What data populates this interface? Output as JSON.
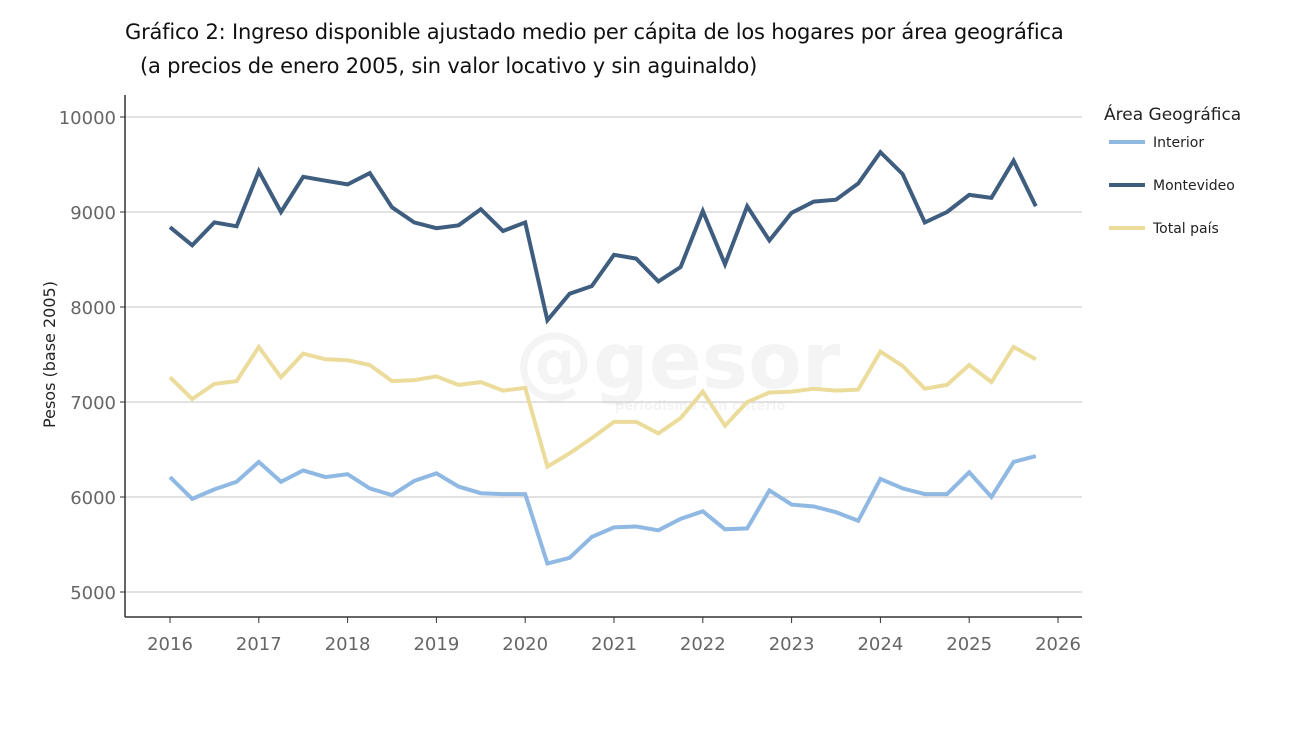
{
  "chart_data": {
    "type": "line",
    "title": "Gráfico 2: Ingreso disponible ajustado medio per cápita de los hogares por área geográfica",
    "subtitle": "(a precios de enero 2005, sin valor locativo y sin aguinaldo)",
    "xlabel": "",
    "ylabel": "Pesos (base 2005)",
    "xlim": [
      2015.5,
      2026.25
    ],
    "ylim": [
      4750,
      10250
    ],
    "x_ticks": [
      2016,
      2017,
      2018,
      2019,
      2020,
      2021,
      2022,
      2023,
      2024,
      2025,
      2026
    ],
    "y_ticks": [
      5000,
      6000,
      7000,
      8000,
      9000,
      10000
    ],
    "grid": "horizontal",
    "legend": {
      "title": "Área Geográfica",
      "position": "top-right"
    },
    "x": [
      2016.0,
      2016.25,
      2016.5,
      2016.75,
      2017.0,
      2017.25,
      2017.5,
      2017.75,
      2018.0,
      2018.25,
      2018.5,
      2018.75,
      2019.0,
      2019.25,
      2019.5,
      2019.75,
      2020.0,
      2020.25,
      2020.5,
      2020.75,
      2021.0,
      2021.25,
      2021.5,
      2021.75,
      2022.0,
      2022.25,
      2022.5,
      2022.75,
      2023.0,
      2023.25,
      2023.5,
      2023.75,
      2024.0,
      2024.25,
      2024.5,
      2024.75,
      2025.0,
      2025.25,
      2025.5,
      2025.75
    ],
    "series": [
      {
        "name": "Interior",
        "color": "#8fb8e3",
        "values": [
          6210,
          5980,
          6080,
          6160,
          6370,
          6160,
          6280,
          6210,
          6240,
          6090,
          6020,
          6170,
          6250,
          6110,
          6040,
          6030,
          6030,
          5300,
          5360,
          5580,
          5680,
          5690,
          5650,
          5770,
          5850,
          5660,
          5670,
          6070,
          5920,
          5900,
          5840,
          5750,
          6190,
          6090,
          6030,
          6030,
          6260,
          6000,
          6370,
          6430
        ]
      },
      {
        "name": "Montevideo",
        "color": "#3f5e7f",
        "values": [
          8840,
          8650,
          8890,
          8850,
          9430,
          9000,
          9370,
          9330,
          9290,
          9410,
          9050,
          8890,
          8830,
          8860,
          9030,
          8800,
          8890,
          7860,
          8140,
          8220,
          8550,
          8510,
          8270,
          8420,
          9010,
          8450,
          9060,
          8700,
          8990,
          9110,
          9130,
          9300,
          9630,
          9400,
          8890,
          9000,
          9180,
          9150,
          9540,
          9060
        ]
      },
      {
        "name": "Total país",
        "color": "#ebdc9c",
        "values": [
          7260,
          7030,
          7190,
          7220,
          7580,
          7260,
          7510,
          7450,
          7440,
          7390,
          7220,
          7230,
          7270,
          7180,
          7210,
          7120,
          7150,
          6320,
          6460,
          6620,
          6790,
          6790,
          6670,
          6830,
          7110,
          6750,
          7000,
          7100,
          7110,
          7140,
          7120,
          7130,
          7530,
          7380,
          7140,
          7180,
          7390,
          7210,
          7580,
          7450
        ]
      }
    ],
    "watermark": {
      "text": "@gesor",
      "subtext": "periodismo con criterio"
    }
  }
}
